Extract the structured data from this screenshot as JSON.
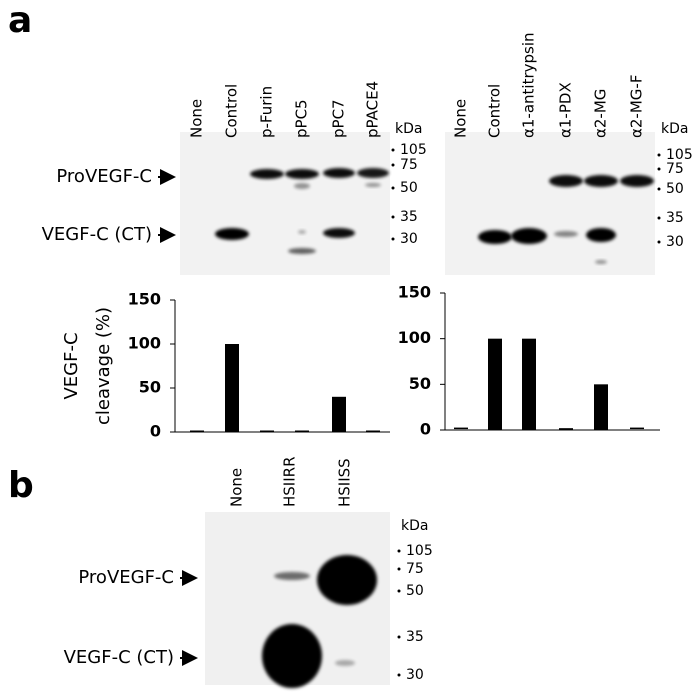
{
  "panel_a": {
    "label": "a",
    "row_labels": [
      "ProVEGF-C",
      "VEGF-C (CT)"
    ],
    "unit": "kDa",
    "markers": [
      105,
      75,
      50,
      35,
      30
    ]
  },
  "panel_b": {
    "label": "b",
    "lanes": [
      "None",
      "HSIIRR",
      "HSIISS"
    ],
    "row_labels": [
      "ProVEGF-C",
      "VEGF-C (CT)"
    ],
    "unit": "kDa",
    "markers": [
      105,
      75,
      50,
      35,
      30
    ]
  },
  "chart_data": [
    {
      "type": "bar",
      "ylabel": [
        "VEGF-C",
        "cleavage (%)"
      ],
      "categories": [
        "None",
        "Control",
        "p-Furin",
        "pPC5",
        "pPC7",
        "pPACE4"
      ],
      "values": [
        0,
        100,
        0,
        0,
        40,
        0
      ],
      "color": "#000000",
      "ylim": [
        0,
        150
      ],
      "yticks": [
        0,
        50,
        100,
        150
      ]
    },
    {
      "type": "bar",
      "categories": [
        "None",
        "Control",
        "α1-antitrypsin",
        "α1-PDX",
        "α2-MG",
        "α2-MG-F"
      ],
      "values": [
        1,
        100,
        100,
        2,
        50,
        1
      ],
      "color": "#000000",
      "ylim": [
        0,
        150
      ],
      "yticks": [
        0,
        50,
        100,
        150
      ]
    }
  ]
}
